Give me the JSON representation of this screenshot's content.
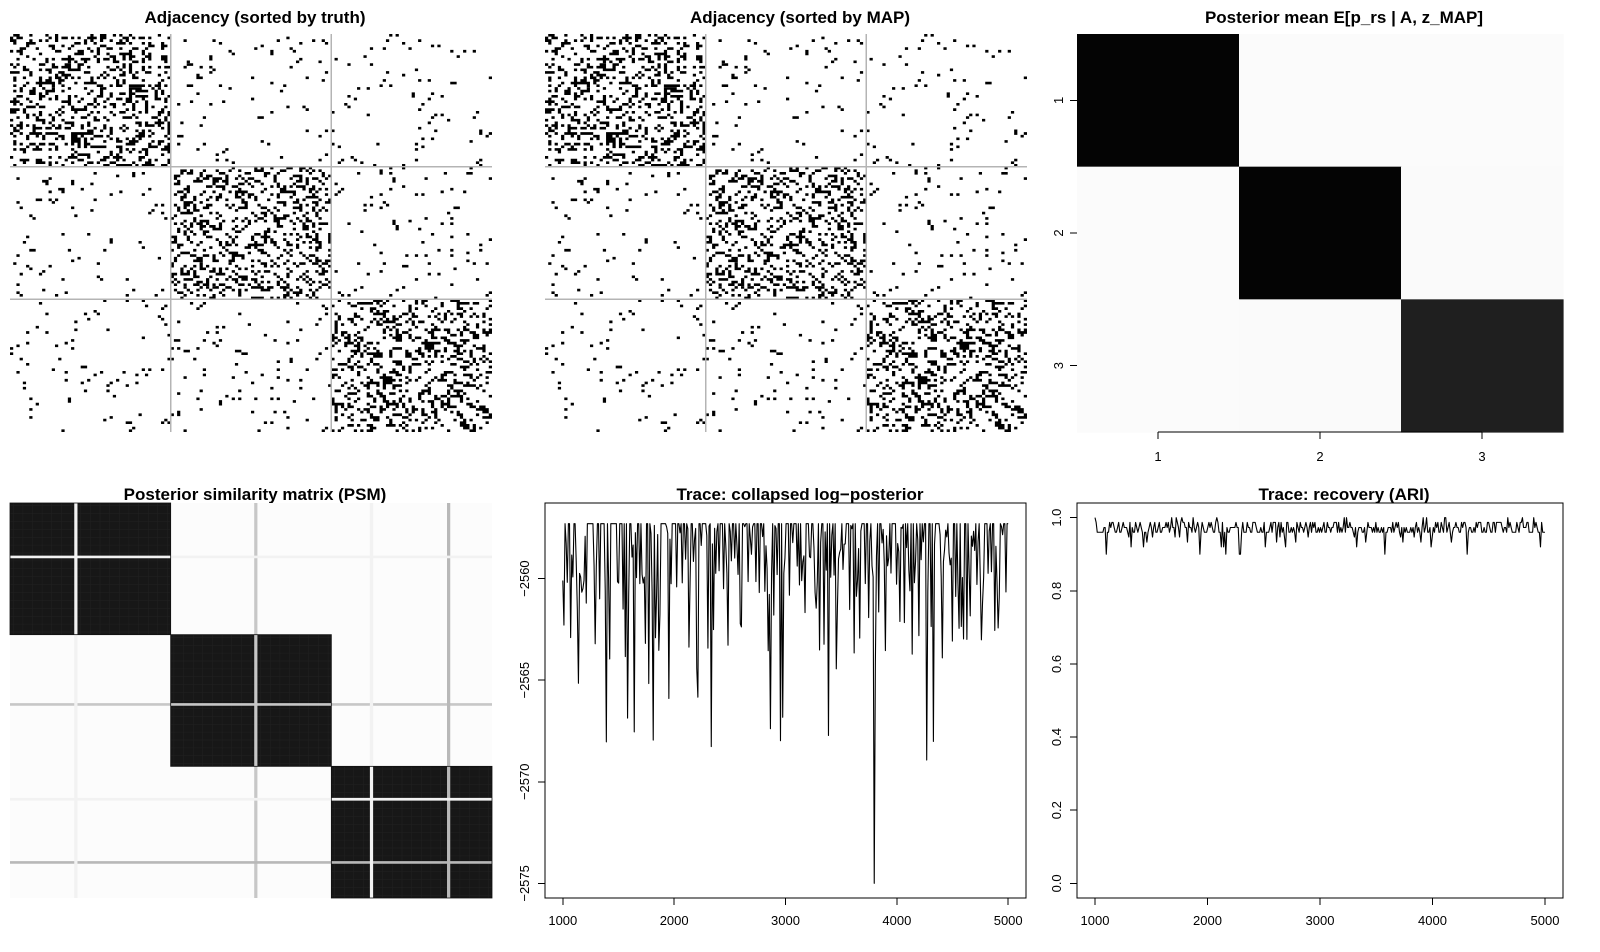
{
  "chart_data": [
    {
      "type": "heatmap",
      "title": "Adjacency (sorted by truth)",
      "n_nodes": 150,
      "blocks": [
        50,
        50,
        50
      ],
      "within_block_density": 0.3,
      "between_block_density": 0.03,
      "values": "binary adjacency matrix (0 = white, 1 = black)"
    },
    {
      "type": "heatmap",
      "title": "Adjacency (sorted by MAP)",
      "n_nodes": 150,
      "blocks": [
        50,
        50,
        50
      ],
      "within_block_density": 0.3,
      "between_block_density": 0.03,
      "values": "binary adjacency matrix (0 = white, 1 = black)"
    },
    {
      "type": "heatmap",
      "title": "Posterior mean  E[p_rs | A, z_MAP]",
      "row_labels": [
        "1",
        "2",
        "3"
      ],
      "col_labels": [
        "1",
        "2",
        "3"
      ],
      "x_ticks": [
        "1",
        "2",
        "3"
      ],
      "y_ticks": [
        "1",
        "2",
        "3"
      ],
      "matrix": [
        [
          0.3,
          0.02,
          0.02
        ],
        [
          0.02,
          0.3,
          0.03
        ],
        [
          0.02,
          0.03,
          0.28
        ]
      ],
      "colormap": "white (low) to black (high)"
    },
    {
      "type": "heatmap",
      "title": "Posterior similarity matrix (PSM)",
      "n_nodes": 150,
      "blocks": [
        50,
        50,
        50
      ],
      "within_block_similarity": 0.97,
      "between_block_similarity": 0.01
    },
    {
      "type": "line",
      "title": "Trace: collapsed log−posterior",
      "x_ticks": [
        "1000",
        "2000",
        "3000",
        "4000",
        "5000"
      ],
      "y_ticks": [
        "−2560",
        "−2565",
        "−2570",
        "−2575"
      ],
      "xlim": [
        1000,
        5000
      ],
      "ylim": [
        -2575,
        -2557
      ],
      "typical_range": [
        -2561,
        -2557.3
      ],
      "min_value": -2575,
      "min_at_x": 3800,
      "n_samples": 400
    },
    {
      "type": "line",
      "title": "Trace: recovery (ARI)",
      "x_ticks": [
        "1000",
        "2000",
        "3000",
        "4000",
        "5000"
      ],
      "y_ticks": [
        "0.0",
        "0.2",
        "0.4",
        "0.6",
        "0.8",
        "1.0"
      ],
      "xlim": [
        1000,
        5000
      ],
      "ylim": [
        0,
        1
      ],
      "typical_range": [
        0.92,
        1.0
      ],
      "mean_value": 0.96,
      "n_samples": 400
    }
  ]
}
